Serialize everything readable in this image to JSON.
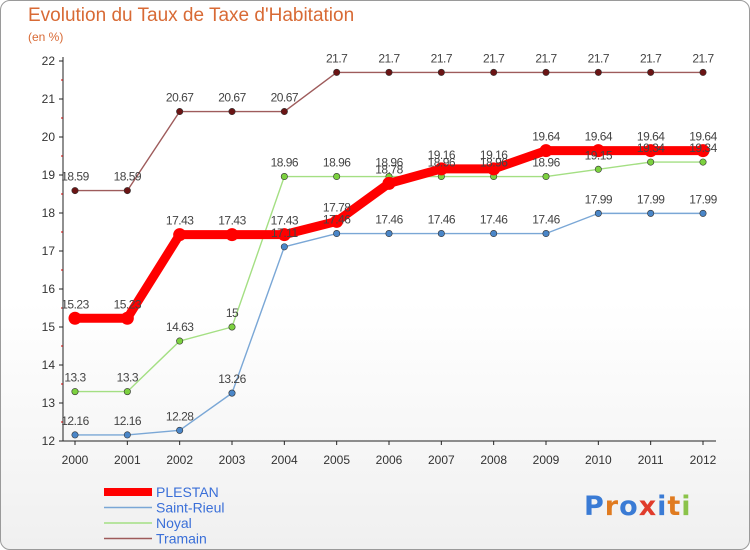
{
  "title": "Evolution du Taux de Taxe d'Habitation",
  "unit_label": "(en %)",
  "logo": {
    "text": "Proxiti",
    "letter_colors": [
      "#3a7bd5",
      "#e07b20",
      "#3a7bd5",
      "#e03c2c",
      "#3a7bd5",
      "#e07b20",
      "#8bc34a"
    ]
  },
  "chart_data": {
    "type": "line",
    "x": [
      "2000",
      "2001",
      "2002",
      "2003",
      "2004",
      "2005",
      "2006",
      "2007",
      "2008",
      "2009",
      "2010",
      "2011",
      "2012"
    ],
    "ylim": [
      12,
      22
    ],
    "yticks": [
      "12",
      "13",
      "14",
      "15",
      "16",
      "17",
      "18",
      "19",
      "20",
      "21",
      "22"
    ],
    "grid": false,
    "legend_position": "bottom-left",
    "series": [
      {
        "name": "PLESTAN",
        "color": "#ff0000",
        "marker_color": "#ff0000",
        "emphasis": "thick",
        "values": [
          15.23,
          15.23,
          17.43,
          17.43,
          17.43,
          17.78,
          18.78,
          19.16,
          19.16,
          19.64,
          19.64,
          19.64,
          19.64
        ],
        "labels": [
          "15.23",
          "15.23",
          "17.43",
          "17.43",
          "17.43",
          "17.78",
          "18.78",
          "19.16",
          "19.16",
          "19.64",
          "19.64",
          "19.64",
          "19.64"
        ]
      },
      {
        "name": "Saint-Rieul",
        "color": "#7aa7d6",
        "marker_color": "#4a86c8",
        "emphasis": "thin",
        "values": [
          12.16,
          12.16,
          12.28,
          13.26,
          17.11,
          17.46,
          17.46,
          17.46,
          17.46,
          17.46,
          17.99,
          17.99,
          17.99
        ],
        "labels": [
          "12.16",
          "12.16",
          "12.28",
          "13.26",
          "17.11",
          "17.46",
          "17.46",
          "17.46",
          "17.46",
          "17.46",
          "17.99",
          "17.99",
          "17.99"
        ]
      },
      {
        "name": "Noyal",
        "color": "#a4df83",
        "marker_color": "#7cd13f",
        "emphasis": "thin",
        "values": [
          13.3,
          13.3,
          14.63,
          15,
          18.96,
          18.96,
          18.96,
          18.96,
          18.96,
          18.96,
          19.15,
          19.34,
          19.34
        ],
        "labels": [
          "13.3",
          "13.3",
          "14.63",
          "15",
          "18.96",
          "18.96",
          "18.96",
          "18.96",
          "18.96",
          "18.96",
          "19.15",
          "19.34",
          "19.34"
        ]
      },
      {
        "name": "Tramain",
        "color": "#9e5b5b",
        "marker_color": "#6b1414",
        "emphasis": "thin",
        "values": [
          18.59,
          18.59,
          20.67,
          20.67,
          20.67,
          21.7,
          21.7,
          21.7,
          21.7,
          21.7,
          21.7,
          21.7,
          21.7
        ],
        "labels": [
          "18.59",
          "18.59",
          "20.67",
          "20.67",
          "20.67",
          "21.7",
          "21.7",
          "21.7",
          "21.7",
          "21.7",
          "21.7",
          "21.7",
          "21.7"
        ]
      }
    ]
  }
}
